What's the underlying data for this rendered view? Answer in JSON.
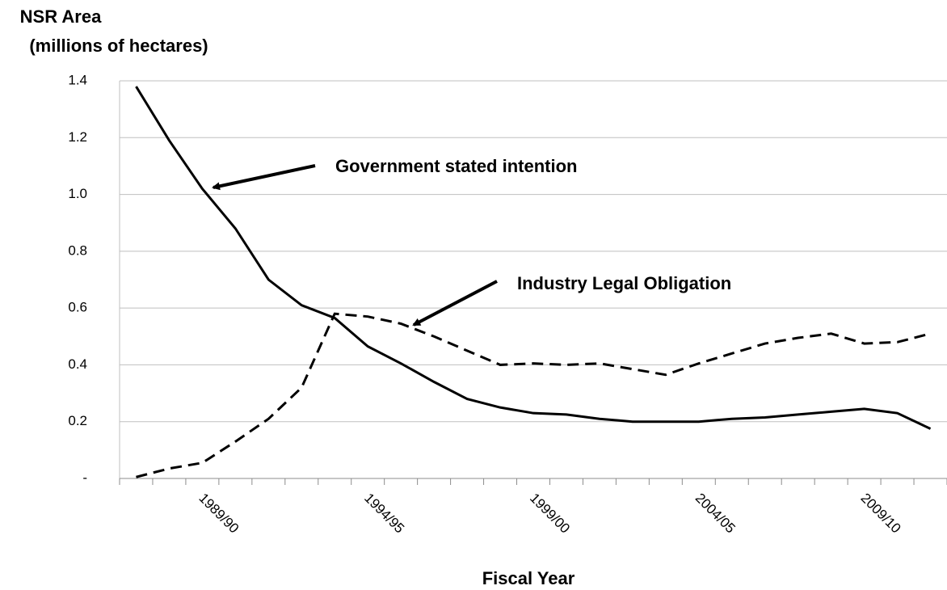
{
  "chart_data": {
    "type": "line",
    "ylabel": [
      "NSR Area",
      "(millions of hectares)"
    ],
    "xlabel": "Fiscal Year",
    "categories": [
      null,
      null,
      "1989/90",
      null,
      null,
      null,
      null,
      "1994/95",
      null,
      null,
      null,
      null,
      "1999/00",
      null,
      null,
      null,
      null,
      "2004/05",
      null,
      null,
      null,
      null,
      "2009/10",
      null,
      null
    ],
    "series": [
      {
        "name": "Government stated intention",
        "color": "#000000",
        "dashed": false,
        "values": [
          1.38,
          1.19,
          1.02,
          0.88,
          0.7,
          0.61,
          0.565,
          0.465,
          0.405,
          0.34,
          0.28,
          0.25,
          0.23,
          0.225,
          0.21,
          0.2,
          0.2,
          0.2,
          0.21,
          0.215,
          0.225,
          0.235,
          0.245,
          0.23,
          0.175
        ]
      },
      {
        "name": "Industry Legal Obligation",
        "color": "#000000",
        "dashed": true,
        "values": [
          0.005,
          0.035,
          0.055,
          0.13,
          0.21,
          0.32,
          0.58,
          0.57,
          0.545,
          0.5,
          0.45,
          0.4,
          0.405,
          0.4,
          0.405,
          0.385,
          0.365,
          0.405,
          0.44,
          0.475,
          0.495,
          0.51,
          0.475,
          0.48,
          0.51
        ]
      }
    ],
    "ylim": [
      0,
      1.4
    ],
    "yticks": [
      {
        "value": 0,
        "label": "-"
      },
      0.2,
      0.4,
      0.6,
      0.8,
      {
        "value": 1,
        "label": "1.0"
      },
      1.2,
      1.4
    ],
    "grid": true
  }
}
